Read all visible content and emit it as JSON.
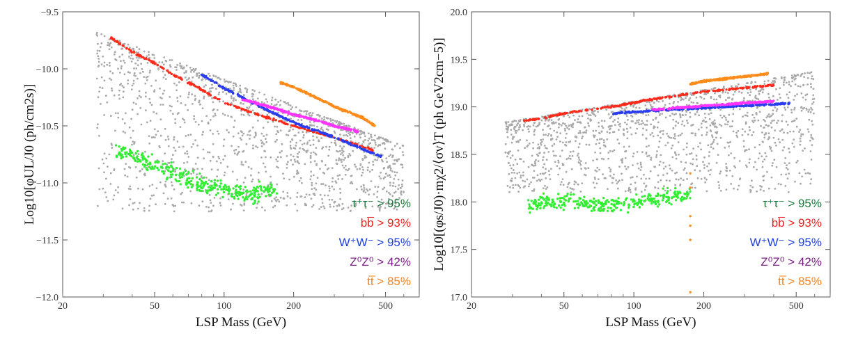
{
  "chart_data": [
    {
      "type": "scatter",
      "xlabel": "LSP Mass (GeV)",
      "ylabel": "Log10[φUL/J0 (ph/cm2s)]",
      "xscale": "log",
      "xlim": [
        20,
        700
      ],
      "ylim": [
        -12.0,
        -9.5
      ],
      "xticks": [
        20,
        50,
        100,
        200,
        500
      ],
      "xtick_labels": [
        "20",
        "50",
        "100",
        "200",
        "500"
      ],
      "yticks": [
        -12.0,
        -11.5,
        -11.0,
        -10.5,
        -10.0,
        -9.5
      ],
      "ytick_labels": [
        "−12.0",
        "−11.5",
        "−11.0",
        "−10.5",
        "−10.0",
        "−9.5"
      ],
      "legend_position": "bottom-right",
      "legend": [
        {
          "label": "τ⁺τ⁻ > 95%",
          "color": "#1e7a3c"
        },
        {
          "label": "bb̅ > 93%",
          "color": "#e8231f"
        },
        {
          "label": "W⁺W⁻ > 95%",
          "color": "#1f3fe0"
        },
        {
          "label": "Z⁰Z⁰ > 42%",
          "color": "#7a1e86"
        },
        {
          "label": "tt̅ > 85%",
          "color": "#f5841f"
        }
      ],
      "series": [
        {
          "color": "#a9a9a9",
          "kind": "cloud",
          "x": [
            28,
            600
          ],
          "y": [
            -11.25,
            -9.7
          ]
        },
        {
          "color": "#33ee33",
          "kind": "band",
          "x": [
            34,
            42,
            55,
            70,
            90,
            110,
            140,
            170
          ],
          "y": [
            -10.72,
            -10.78,
            -10.88,
            -10.98,
            -11.04,
            -11.08,
            -11.08,
            -11.05
          ],
          "spread": 0.12
        },
        {
          "color": "#ff2a1a",
          "kind": "line",
          "x": [
            32,
            40,
            50,
            60,
            75,
            100,
            150,
            200,
            300,
            450
          ],
          "y": [
            -9.72,
            -9.85,
            -9.95,
            -10.05,
            -10.15,
            -10.3,
            -10.42,
            -10.5,
            -10.6,
            -10.72
          ]
        },
        {
          "color": "#2a3cf0",
          "kind": "line",
          "x": [
            80,
            100,
            150,
            200,
            300,
            480
          ],
          "y": [
            -10.05,
            -10.17,
            -10.35,
            -10.47,
            -10.6,
            -10.77
          ]
        },
        {
          "color": "#ff33ff",
          "kind": "line",
          "x": [
            120,
            150,
            200,
            250,
            300,
            380
          ],
          "y": [
            -10.27,
            -10.32,
            -10.4,
            -10.45,
            -10.5,
            -10.55
          ]
        },
        {
          "color": "#ff8c1a",
          "kind": "line",
          "x": [
            175,
            200,
            250,
            300,
            400,
            450
          ],
          "y": [
            -10.12,
            -10.16,
            -10.25,
            -10.33,
            -10.43,
            -10.5
          ]
        }
      ]
    },
    {
      "type": "scatter",
      "xlabel": "LSP Mass (GeV)",
      "ylabel": "Log10[(φs/J0)·mχ2/⟨σv⟩T (ph GeV2cm−5)]",
      "xscale": "log",
      "xlim": [
        20,
        700
      ],
      "ylim": [
        17.0,
        20.0
      ],
      "xticks": [
        20,
        50,
        100,
        200,
        500
      ],
      "xtick_labels": [
        "20",
        "50",
        "100",
        "200",
        "500"
      ],
      "yticks": [
        17.0,
        17.5,
        18.0,
        18.5,
        19.0,
        19.5,
        20.0
      ],
      "ytick_labels": [
        "17.0",
        "17.5",
        "18.0",
        "18.5",
        "19.0",
        "19.5",
        "20.0"
      ],
      "legend_position": "bottom-right",
      "legend": [
        {
          "label": "τ⁺τ⁻ > 95%",
          "color": "#1e7a3c"
        },
        {
          "label": "bb̅ > 93%",
          "color": "#e8231f"
        },
        {
          "label": "W⁺W⁻ > 95%",
          "color": "#1f3fe0"
        },
        {
          "label": "Z⁰Z⁰ > 42%",
          "color": "#7a1e86"
        },
        {
          "label": "tt̅ > 85%",
          "color": "#f5841f"
        }
      ],
      "series": [
        {
          "color": "#a9a9a9",
          "kind": "cloud",
          "x": [
            28,
            600
          ],
          "y": [
            18.1,
            19.4
          ]
        },
        {
          "color": "#33ee33",
          "kind": "band",
          "x": [
            35,
            45,
            55,
            70,
            90,
            110,
            140,
            175
          ],
          "y": [
            17.97,
            18.0,
            18.0,
            17.97,
            17.98,
            18.02,
            18.05,
            18.07
          ],
          "spread": 0.12
        },
        {
          "color": "#ff2a1a",
          "kind": "line",
          "x": [
            33,
            40,
            50,
            55,
            80,
            120,
            200,
            300,
            400
          ],
          "y": [
            18.85,
            18.88,
            18.93,
            18.95,
            19.0,
            19.08,
            19.16,
            19.2,
            19.23
          ]
        },
        {
          "color": "#2a3cf0",
          "kind": "line",
          "x": [
            80,
            120,
            200,
            300,
            480
          ],
          "y": [
            18.93,
            18.96,
            18.99,
            19.01,
            19.04
          ]
        },
        {
          "color": "#ff33ff",
          "kind": "line",
          "x": [
            120,
            200,
            300,
            400
          ],
          "y": [
            18.97,
            19.01,
            19.04,
            19.06
          ]
        },
        {
          "color": "#ff8c1a",
          "kind": "line",
          "x": [
            175,
            200,
            300,
            380
          ],
          "y": [
            19.24,
            19.27,
            19.32,
            19.35
          ]
        },
        {
          "color": "#ff8c1a",
          "kind": "points",
          "x": [
            175,
            175,
            175,
            175,
            175,
            175
          ],
          "y": [
            17.05,
            17.6,
            17.75,
            17.85,
            18.15,
            18.3
          ]
        }
      ]
    }
  ]
}
